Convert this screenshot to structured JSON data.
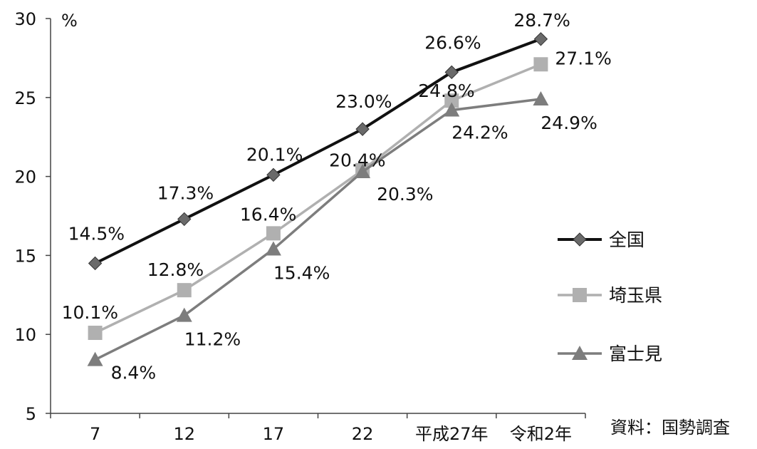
{
  "chart_data": {
    "type": "line",
    "ylabel": "%",
    "ylim": [
      5,
      30
    ],
    "yticks": [
      "5",
      "10",
      "15",
      "20",
      "25",
      "30"
    ],
    "categories": [
      "7",
      "12",
      "17",
      "22",
      "平成27年",
      "令和2年"
    ],
    "series": [
      {
        "name": "全国",
        "values": [
          14.5,
          17.3,
          20.1,
          23.0,
          26.6,
          28.7
        ],
        "labels": [
          "14.5%",
          "17.3%",
          "20.1%",
          "23.0%",
          "26.6%",
          "28.7%"
        ],
        "color": "#111111",
        "marker": "diamond"
      },
      {
        "name": "埼玉県",
        "values": [
          10.1,
          12.8,
          16.4,
          20.4,
          24.8,
          27.1
        ],
        "labels": [
          "10.1%",
          "12.8%",
          "16.4%",
          "20.4%",
          "24.8%",
          "27.1%"
        ],
        "color": "#b0b0b0",
        "marker": "square"
      },
      {
        "name": "富士見",
        "values": [
          8.4,
          11.2,
          15.4,
          20.3,
          24.2,
          24.9
        ],
        "labels": [
          "8.4%",
          "11.2%",
          "15.4%",
          "20.3%",
          "24.2%",
          "24.9%"
        ],
        "color": "#7d7d7d",
        "marker": "triangle"
      }
    ],
    "legend_position": "right",
    "grid": false,
    "source": "資料：国勢調査"
  }
}
